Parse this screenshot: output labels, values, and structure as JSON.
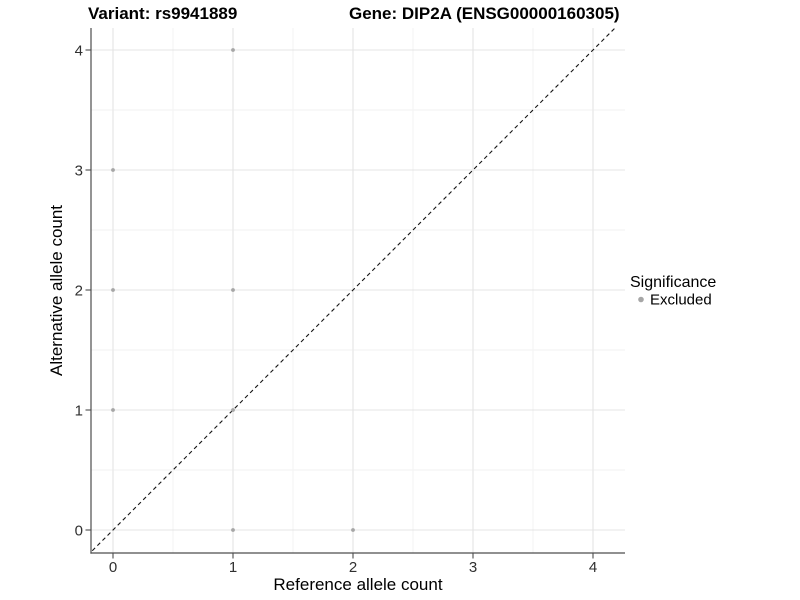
{
  "figure": {
    "background": "#ffffff"
  },
  "chart_data": {
    "type": "scatter",
    "titles": {
      "variant": "Variant: rs9941889",
      "gene": "Gene: DIP2A (ENSG00000160305)"
    },
    "xlabel": "Reference allele count",
    "ylabel": "Alternative allele count",
    "x_ticks": [
      0,
      1,
      2,
      3,
      4
    ],
    "y_ticks": [
      0,
      1,
      2,
      3,
      4
    ],
    "xlim": [
      -0.2,
      4.27
    ],
    "ylim": [
      -0.19,
      4.18
    ],
    "grid": {
      "major": true,
      "minor": true,
      "major_color": "#e4e4e4",
      "minor_color": "#f2f2f2"
    },
    "axes": {
      "line_color": "#4d4d4d",
      "tick_color": "#4d4d4d",
      "tick_label_color": "#303030"
    },
    "series": [
      {
        "name": "Excluded",
        "color": "#a6a6a6",
        "points": [
          {
            "x": 0,
            "y": 1
          },
          {
            "x": 0,
            "y": 2
          },
          {
            "x": 0,
            "y": 3
          },
          {
            "x": 1,
            "y": 0
          },
          {
            "x": 1,
            "y": 1
          },
          {
            "x": 1,
            "y": 2
          },
          {
            "x": 1,
            "y": 4
          },
          {
            "x": 2,
            "y": 0
          }
        ]
      }
    ],
    "reference_line": {
      "slope": 1,
      "intercept": 0,
      "style": "dashed",
      "color": "#151515"
    },
    "legend": {
      "title": "Significance",
      "position": "right",
      "items": [
        {
          "label": "Excluded",
          "color": "#a6a6a6"
        }
      ]
    }
  }
}
